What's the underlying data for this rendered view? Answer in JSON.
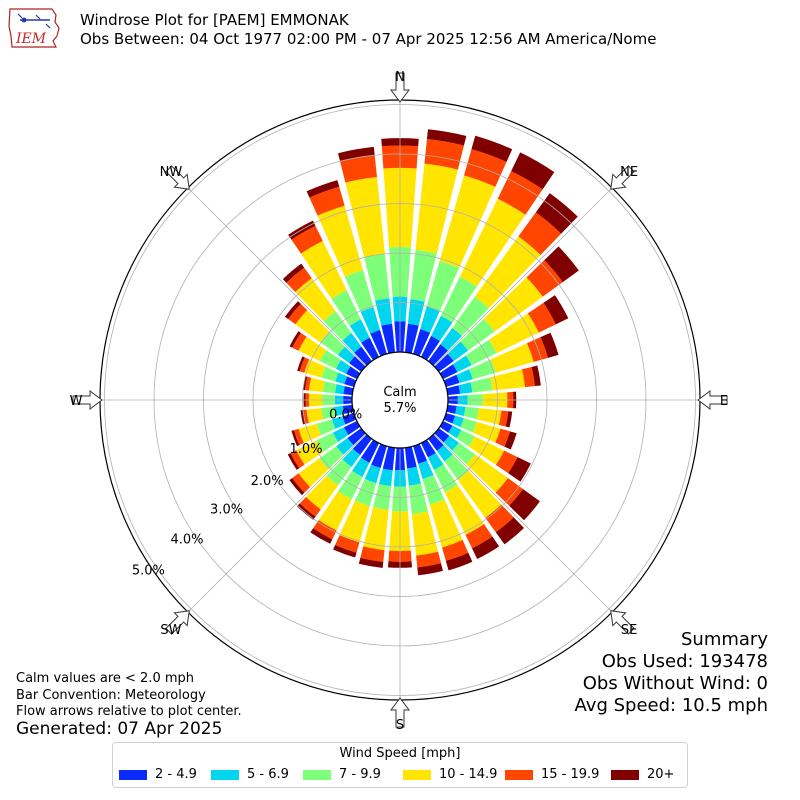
{
  "header": {
    "title_line1": "Windrose Plot for [PAEM] EMMONAK",
    "title_line2": "Obs Between: 04 Oct 1977 02:00 PM - 07 Apr 2025 12:56 AM America/Nome",
    "logo_text": "IEM"
  },
  "summary": {
    "heading": "Summary",
    "obs_used": "Obs Used: 193478",
    "obs_without_wind": "Obs Without Wind: 0",
    "avg_speed": "Avg Speed: 10.5 mph"
  },
  "notes": {
    "calm_note": "Calm values are < 2.0 mph",
    "bar_convention": "Bar Convention: Meteorology",
    "flow_note": "Flow arrows relative to plot center.",
    "generated": "Generated: 07 Apr 2025"
  },
  "chart_data": {
    "type": "windrose",
    "calm_label": "Calm",
    "calm_value_label": "5.7%",
    "calm_percent": 5.7,
    "radial_unit": "percent",
    "radial_ticks": [
      0,
      1,
      2,
      3,
      4,
      5
    ],
    "radial_tick_labels": [
      "0.0%",
      "1.0%",
      "2.0%",
      "3.0%",
      "4.0%",
      "5.0%"
    ],
    "direction_labels": [
      "N",
      "NE",
      "E",
      "SE",
      "S",
      "SW",
      "W",
      "NW"
    ],
    "direction_angles": [
      0,
      45,
      90,
      135,
      180,
      225,
      270,
      315
    ],
    "sector_directions": [
      0,
      10,
      20,
      30,
      40,
      50,
      60,
      70,
      80,
      90,
      100,
      110,
      120,
      130,
      140,
      150,
      160,
      170,
      180,
      190,
      200,
      210,
      220,
      230,
      240,
      250,
      260,
      270,
      280,
      290,
      300,
      310,
      320,
      330,
      340,
      350
    ],
    "legend_title": "Wind Speed [mph]",
    "series": [
      {
        "name": "2 - 4.9",
        "color": "#0a2aff",
        "values": [
          0.62,
          0.58,
          0.52,
          0.47,
          0.42,
          0.37,
          0.32,
          0.28,
          0.25,
          0.2,
          0.18,
          0.19,
          0.21,
          0.26,
          0.3,
          0.32,
          0.37,
          0.42,
          0.45,
          0.46,
          0.46,
          0.44,
          0.4,
          0.34,
          0.29,
          0.24,
          0.19,
          0.18,
          0.18,
          0.2,
          0.24,
          0.3,
          0.36,
          0.43,
          0.5,
          0.58
        ]
      },
      {
        "name": "5 - 6.9",
        "color": "#00d5f0",
        "values": [
          0.5,
          0.5,
          0.48,
          0.45,
          0.41,
          0.36,
          0.32,
          0.28,
          0.25,
          0.2,
          0.18,
          0.18,
          0.2,
          0.24,
          0.26,
          0.28,
          0.32,
          0.35,
          0.33,
          0.32,
          0.32,
          0.32,
          0.3,
          0.28,
          0.25,
          0.22,
          0.18,
          0.17,
          0.17,
          0.19,
          0.23,
          0.28,
          0.34,
          0.41,
          0.48,
          0.52
        ]
      },
      {
        "name": "7 - 9.9",
        "color": "#7dff7a",
        "values": [
          1.0,
          1.0,
          0.95,
          0.88,
          0.78,
          0.66,
          0.56,
          0.48,
          0.41,
          0.3,
          0.27,
          0.27,
          0.3,
          0.4,
          0.46,
          0.5,
          0.54,
          0.58,
          0.5,
          0.48,
          0.48,
          0.5,
          0.46,
          0.42,
          0.37,
          0.32,
          0.26,
          0.25,
          0.25,
          0.29,
          0.36,
          0.44,
          0.55,
          0.66,
          0.78,
          0.9
        ]
      },
      {
        "name": "10 - 14.9",
        "color": "#ffe500",
        "values": [
          1.6,
          1.75,
          1.8,
          1.75,
          1.5,
          1.2,
          0.95,
          0.8,
          0.66,
          0.5,
          0.46,
          0.5,
          0.66,
          0.82,
          0.95,
          0.96,
          0.9,
          0.84,
          0.8,
          0.82,
          0.76,
          0.7,
          0.6,
          0.52,
          0.45,
          0.38,
          0.3,
          0.27,
          0.28,
          0.36,
          0.48,
          0.62,
          0.82,
          1.1,
          1.35,
          1.56
        ]
      },
      {
        "name": "15 - 19.9",
        "color": "#ff4500",
        "values": [
          0.45,
          0.5,
          0.55,
          0.62,
          0.6,
          0.5,
          0.38,
          0.3,
          0.2,
          0.12,
          0.14,
          0.2,
          0.3,
          0.38,
          0.36,
          0.3,
          0.28,
          0.24,
          0.22,
          0.24,
          0.22,
          0.2,
          0.18,
          0.16,
          0.13,
          0.1,
          0.08,
          0.07,
          0.08,
          0.1,
          0.14,
          0.18,
          0.26,
          0.34,
          0.4,
          0.45
        ]
      },
      {
        "name": "20+",
        "color": "#800000",
        "values": [
          0.15,
          0.2,
          0.28,
          0.42,
          0.48,
          0.4,
          0.28,
          0.22,
          0.12,
          0.06,
          0.08,
          0.14,
          0.3,
          0.42,
          0.3,
          0.24,
          0.2,
          0.16,
          0.12,
          0.12,
          0.1,
          0.1,
          0.08,
          0.07,
          0.06,
          0.05,
          0.04,
          0.04,
          0.04,
          0.05,
          0.06,
          0.08,
          0.1,
          0.12,
          0.14,
          0.16
        ]
      }
    ]
  }
}
